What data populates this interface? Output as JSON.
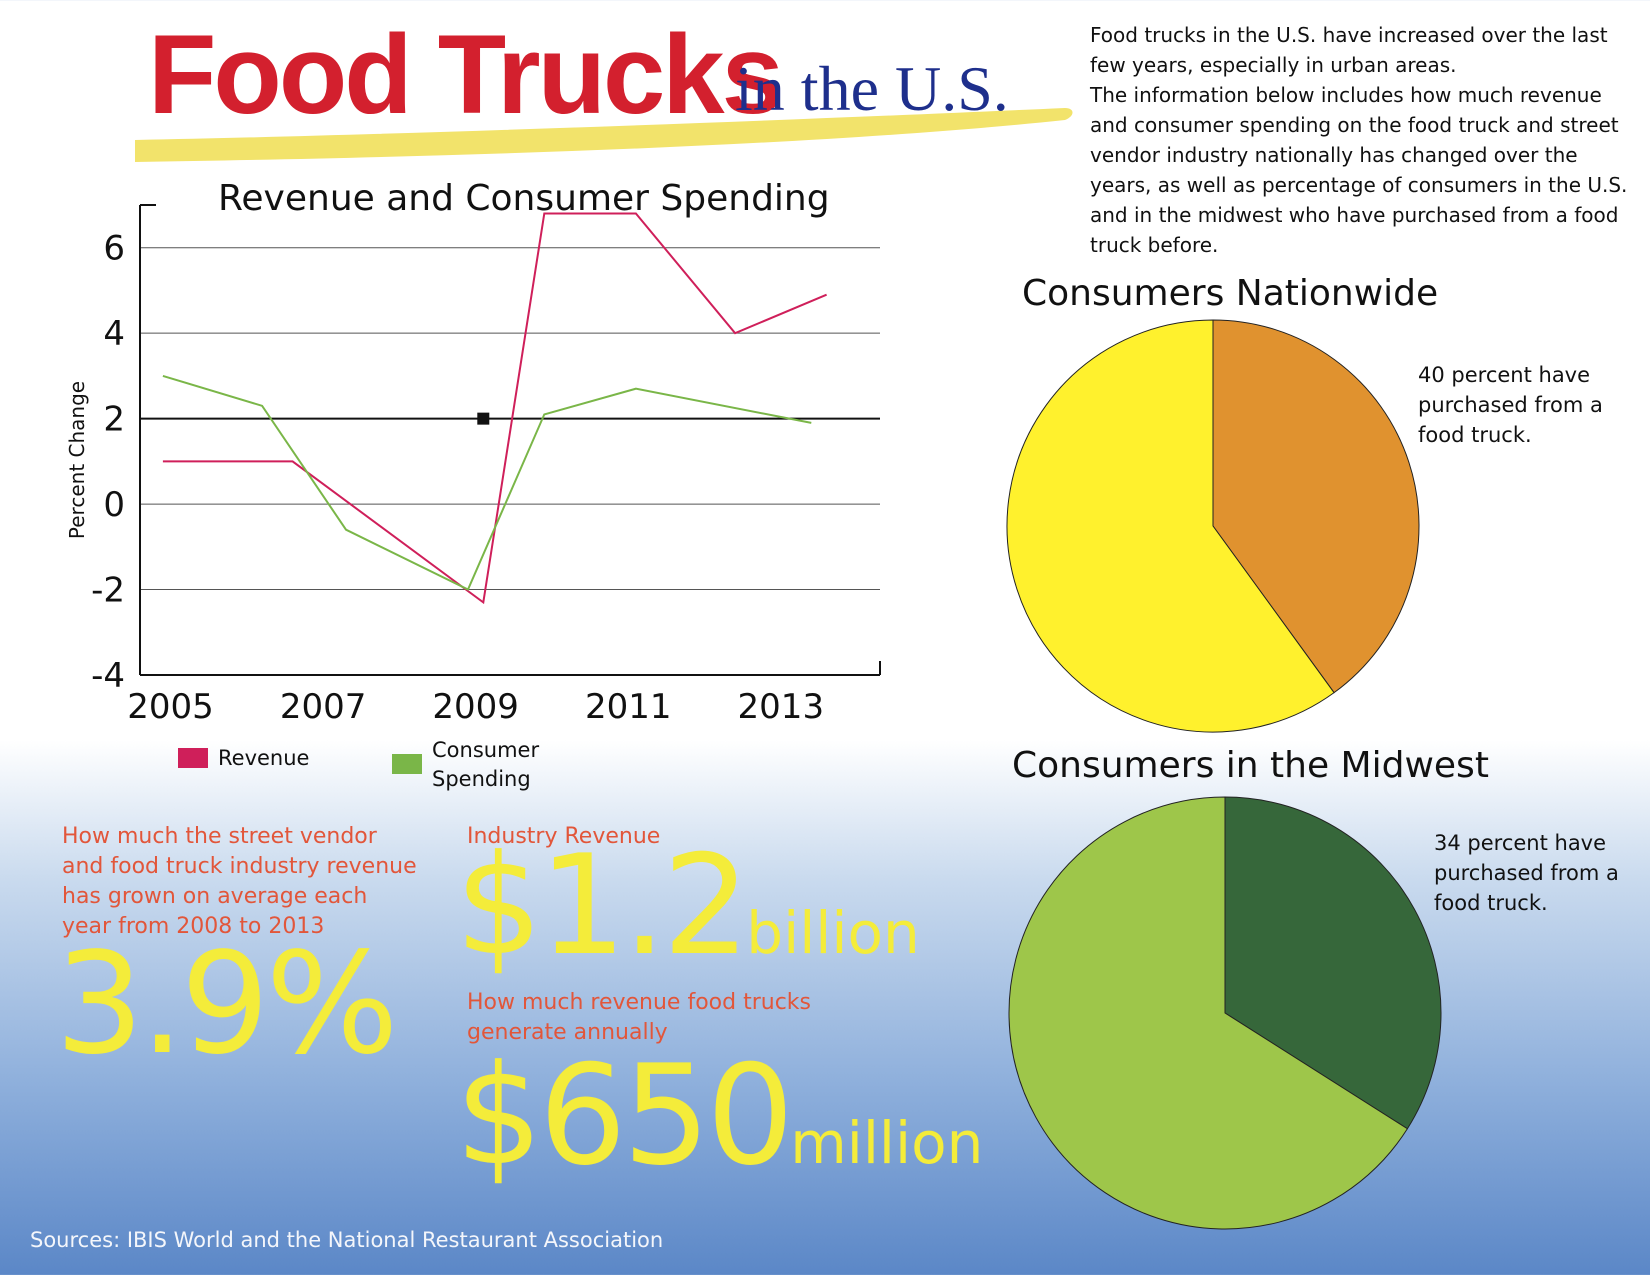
{
  "header": {
    "title_main": "Food Trucks",
    "title_sub": "in the U.S."
  },
  "intro": {
    "line1": "Food trucks in the U.S. have increased over the last few years, especially in urban areas.",
    "line2": "The information below includes how much revenue and consumer spending on the food truck and street vendor industry nationally has changed over the years, as well as percentage of consumers in the U.S. and in the midwest who have purchased from a food truck before."
  },
  "colors": {
    "title_red": "#d3202e",
    "title_blue": "#1e2f8c",
    "swoosh_yellow": "#f2e36b",
    "revenue_line": "#cf1f5a",
    "consumer_line": "#7ab648",
    "stat_label": "#e2563a",
    "stat_value": "#f4ec3a",
    "nationwide_yes": "#e0922f",
    "nationwide_no": "#fff12d",
    "midwest_yes": "#36673a",
    "midwest_no": "#9ec64a"
  },
  "chart_data": [
    {
      "type": "line",
      "title": "Revenue and Consumer Spending",
      "ylabel": "Percent Change",
      "xlabel": "",
      "x_ticks": [
        "2005",
        "2007",
        "2009",
        "2011",
        "2013"
      ],
      "y_ticks": [
        "6",
        "4",
        "2",
        "0",
        "-2",
        "-4"
      ],
      "xlim": [
        2004.6,
        2014.3
      ],
      "ylim": [
        -4,
        7
      ],
      "grid": true,
      "legend_position": "bottom",
      "series": [
        {
          "name": "Revenue",
          "color": "#cf1f5a",
          "points": [
            [
              2004.9,
              1.0
            ],
            [
              2006.6,
              1.0
            ],
            [
              2009.1,
              -2.3
            ],
            [
              2009.9,
              6.8
            ],
            [
              2011.1,
              6.8
            ],
            [
              2012.4,
              4.0
            ],
            [
              2013.6,
              4.9
            ]
          ]
        },
        {
          "name": "Consumer Spending",
          "color": "#7ab648",
          "points": [
            [
              2004.9,
              3.0
            ],
            [
              2006.2,
              2.3
            ],
            [
              2007.3,
              -0.6
            ],
            [
              2008.9,
              -2.0
            ],
            [
              2009.9,
              2.1
            ],
            [
              2011.1,
              2.7
            ],
            [
              2013.4,
              1.9
            ]
          ]
        }
      ],
      "marker": {
        "x": 2009.1,
        "y": 2.0
      }
    },
    {
      "type": "pie",
      "title": "Consumers Nationwide",
      "values": [
        40,
        60
      ],
      "colors": [
        "#e0922f",
        "#fff12d"
      ],
      "annotation": "40 percent have purchased from a food truck."
    },
    {
      "type": "pie",
      "title": "Consumers in the Midwest",
      "values": [
        34,
        66
      ],
      "colors": [
        "#36673a",
        "#9ec64a"
      ],
      "annotation": "34 percent have purchased from a food truck."
    }
  ],
  "stats": {
    "growth_label": "How much the street vendor and food truck industry revenue has grown on average each year from 2008 to 2013",
    "growth_value": "3.9%",
    "revenue_label": "Industry Revenue",
    "revenue_value": "$1.2",
    "revenue_unit": "billion",
    "foodtruck_label": "How much revenue food trucks generate annually",
    "foodtruck_value": "$650",
    "foodtruck_unit": "million"
  },
  "footer": {
    "sources": "Sources: IBIS World and the National Restaurant Association"
  }
}
